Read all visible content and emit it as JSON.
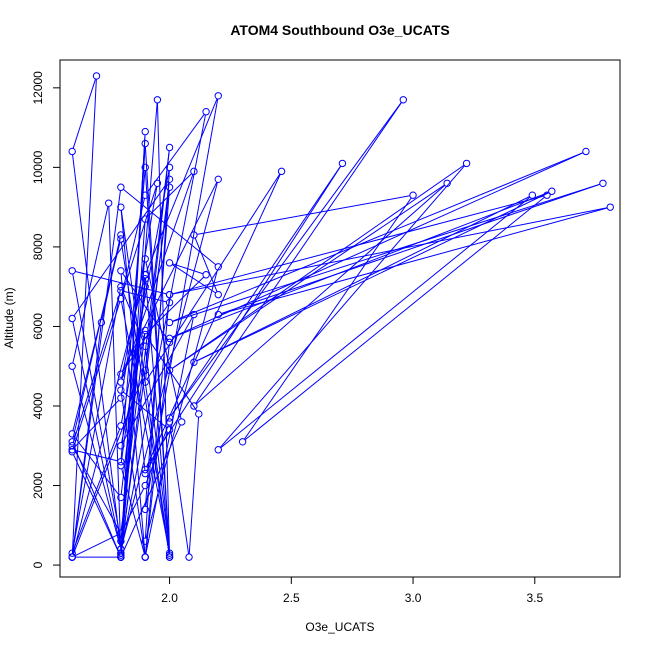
{
  "chart_data": {
    "type": "line",
    "title": "ATOM4 Southbound O3e_UCATS",
    "xlabel": "O3e_UCATS",
    "ylabel": "Altitude (m)",
    "xlim": [
      1.55,
      3.85
    ],
    "ylim": [
      -300,
      12700
    ],
    "xticks": [
      2.0,
      2.5,
      3.0,
      3.5
    ],
    "xtick_labels": [
      "2.0",
      "2.5",
      "3.0",
      "3.5"
    ],
    "yticks": [
      0,
      2000,
      4000,
      6000,
      8000,
      10000,
      12000
    ],
    "ytick_labels": [
      "0",
      "2000",
      "4000",
      "6000",
      "8000",
      "10000",
      "12000"
    ],
    "grid": false,
    "series": [
      {
        "color": "#0000ff",
        "x": [
          1.6,
          1.7,
          1.6,
          1.8,
          1.6,
          1.75,
          1.8,
          1.9,
          1.8,
          1.95,
          2.0,
          1.9,
          1.8,
          1.6,
          1.8,
          1.72,
          1.6,
          1.9,
          2.2,
          1.9,
          2.0,
          1.8,
          1.9,
          2.1,
          1.8,
          1.9,
          2.05,
          1.8,
          1.6,
          1.8,
          1.9,
          2.15,
          1.8,
          1.9,
          1.8,
          2.0,
          1.9,
          1.6,
          1.8,
          2.2,
          1.9,
          2.0,
          1.8,
          1.6,
          1.8,
          1.9,
          2.0,
          1.8,
          1.95,
          1.8,
          1.6,
          1.8,
          1.9,
          2.0,
          1.8,
          1.9,
          2.0,
          1.8,
          1.9,
          2.0,
          1.6,
          1.8,
          1.9,
          2.0,
          1.8,
          1.6,
          1.8,
          1.9,
          1.8,
          1.9,
          2.0,
          1.8,
          1.9,
          2.1,
          1.8,
          1.9,
          1.8,
          1.6,
          1.8,
          2.0,
          1.8,
          2.2,
          1.8,
          1.6,
          2.0,
          1.9,
          2.46,
          1.9,
          2.71,
          2.0,
          2.96,
          2.1,
          3.14,
          2.0,
          3.22,
          2.2,
          3.49,
          2.1,
          3.57,
          2.0,
          3.71,
          2.0,
          3.78,
          2.2,
          3.81,
          2.0,
          3.55,
          2.3,
          3.0,
          2.1,
          2.2,
          2.0,
          2.15,
          1.9,
          2.12,
          2.08,
          2.0,
          1.9,
          1.8,
          1.6,
          1.8
        ],
        "y": [
          200,
          12300,
          10400,
          400,
          5000,
          9100,
          300,
          10900,
          250,
          11700,
          250,
          10600,
          200,
          3100,
          8300,
          6100,
          200,
          7300,
          11800,
          1400,
          9500,
          300,
          8700,
          9900,
          4600,
          7700,
          3600,
          200,
          2850,
          6700,
          9300,
          11400,
          300,
          7200,
          200,
          10500,
          4900,
          200,
          9500,
          7500,
          600,
          10000,
          3500,
          300,
          7000,
          5500,
          300,
          6700,
          9600,
          4200,
          2900,
          2600,
          10000,
          200,
          9000,
          2300,
          3400,
          4400,
          200,
          6800,
          7400,
          600,
          7300,
          200,
          8200,
          3300,
          1700,
          7000,
          2500,
          200,
          5600,
          7400,
          200,
          6300,
          3000,
          5900,
          800,
          3000,
          6900,
          6600,
          4800,
          9700,
          400,
          6200,
          9700,
          4600,
          9900,
          2400,
          10100,
          3700,
          11700,
          4000,
          9600,
          4900,
          10100,
          2900,
          9300,
          5100,
          9400,
          5700,
          10400,
          6100,
          9600,
          6300,
          9000,
          6800,
          9300,
          3100,
          9300,
          8300,
          6800,
          7600,
          7300,
          5800,
          3800,
          200,
          3600,
          2000,
          800,
          200,
          200
        ]
      }
    ]
  }
}
